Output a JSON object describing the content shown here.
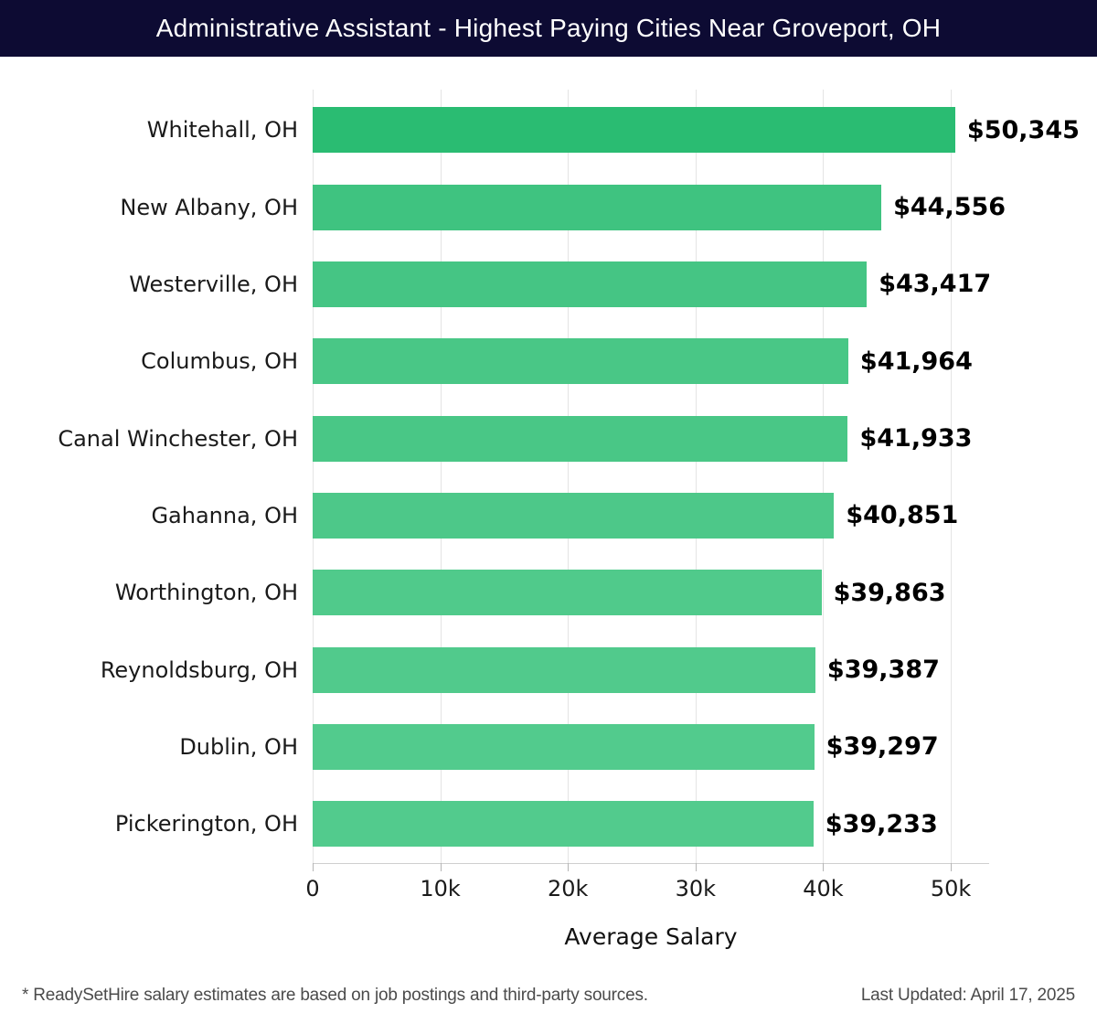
{
  "header": {
    "title": "Administrative Assistant - Highest Paying Cities Near Groveport, OH"
  },
  "chart_data": {
    "type": "bar",
    "orientation": "horizontal",
    "title": "Administrative Assistant - Highest Paying Cities Near Groveport, OH",
    "categories": [
      "Whitehall, OH",
      "New Albany, OH",
      "Westerville, OH",
      "Columbus, OH",
      "Canal Winchester, OH",
      "Gahanna, OH",
      "Worthington, OH",
      "Reynoldsburg, OH",
      "Dublin, OH",
      "Pickerington, OH"
    ],
    "values": [
      50345,
      44556,
      43417,
      41964,
      41933,
      40851,
      39863,
      39387,
      39297,
      39233
    ],
    "value_labels": [
      "$50,345",
      "$44,556",
      "$43,417",
      "$41,964",
      "$41,933",
      "$40,851",
      "$39,863",
      "$39,387",
      "$39,297",
      "$39,233"
    ],
    "bar_colors": [
      "#2abc72",
      "#3fc380",
      "#45c584",
      "#49c786",
      "#49c786",
      "#4dc889",
      "#50ca8b",
      "#51ca8c",
      "#52cb8d",
      "#52cb8d"
    ],
    "xlabel": "Average Salary",
    "xticks": [
      0,
      10000,
      20000,
      30000,
      40000,
      50000
    ],
    "xtick_labels": [
      "0",
      "10k",
      "20k",
      "30k",
      "40k",
      "50k"
    ],
    "xlim": [
      0,
      53000
    ],
    "grid": true,
    "legend": false
  },
  "footer": {
    "note": "* ReadySetHire salary estimates are based on job postings and third-party sources.",
    "last_updated": "Last Updated: April 17, 2025"
  },
  "colors": {
    "header_bg": "#0d0b33",
    "grid": "#e4e4e4",
    "axis": "#cfcfcf",
    "label_text": "#1a1a1a",
    "value_text": "#000000",
    "footer_text": "#4b4b4b"
  }
}
